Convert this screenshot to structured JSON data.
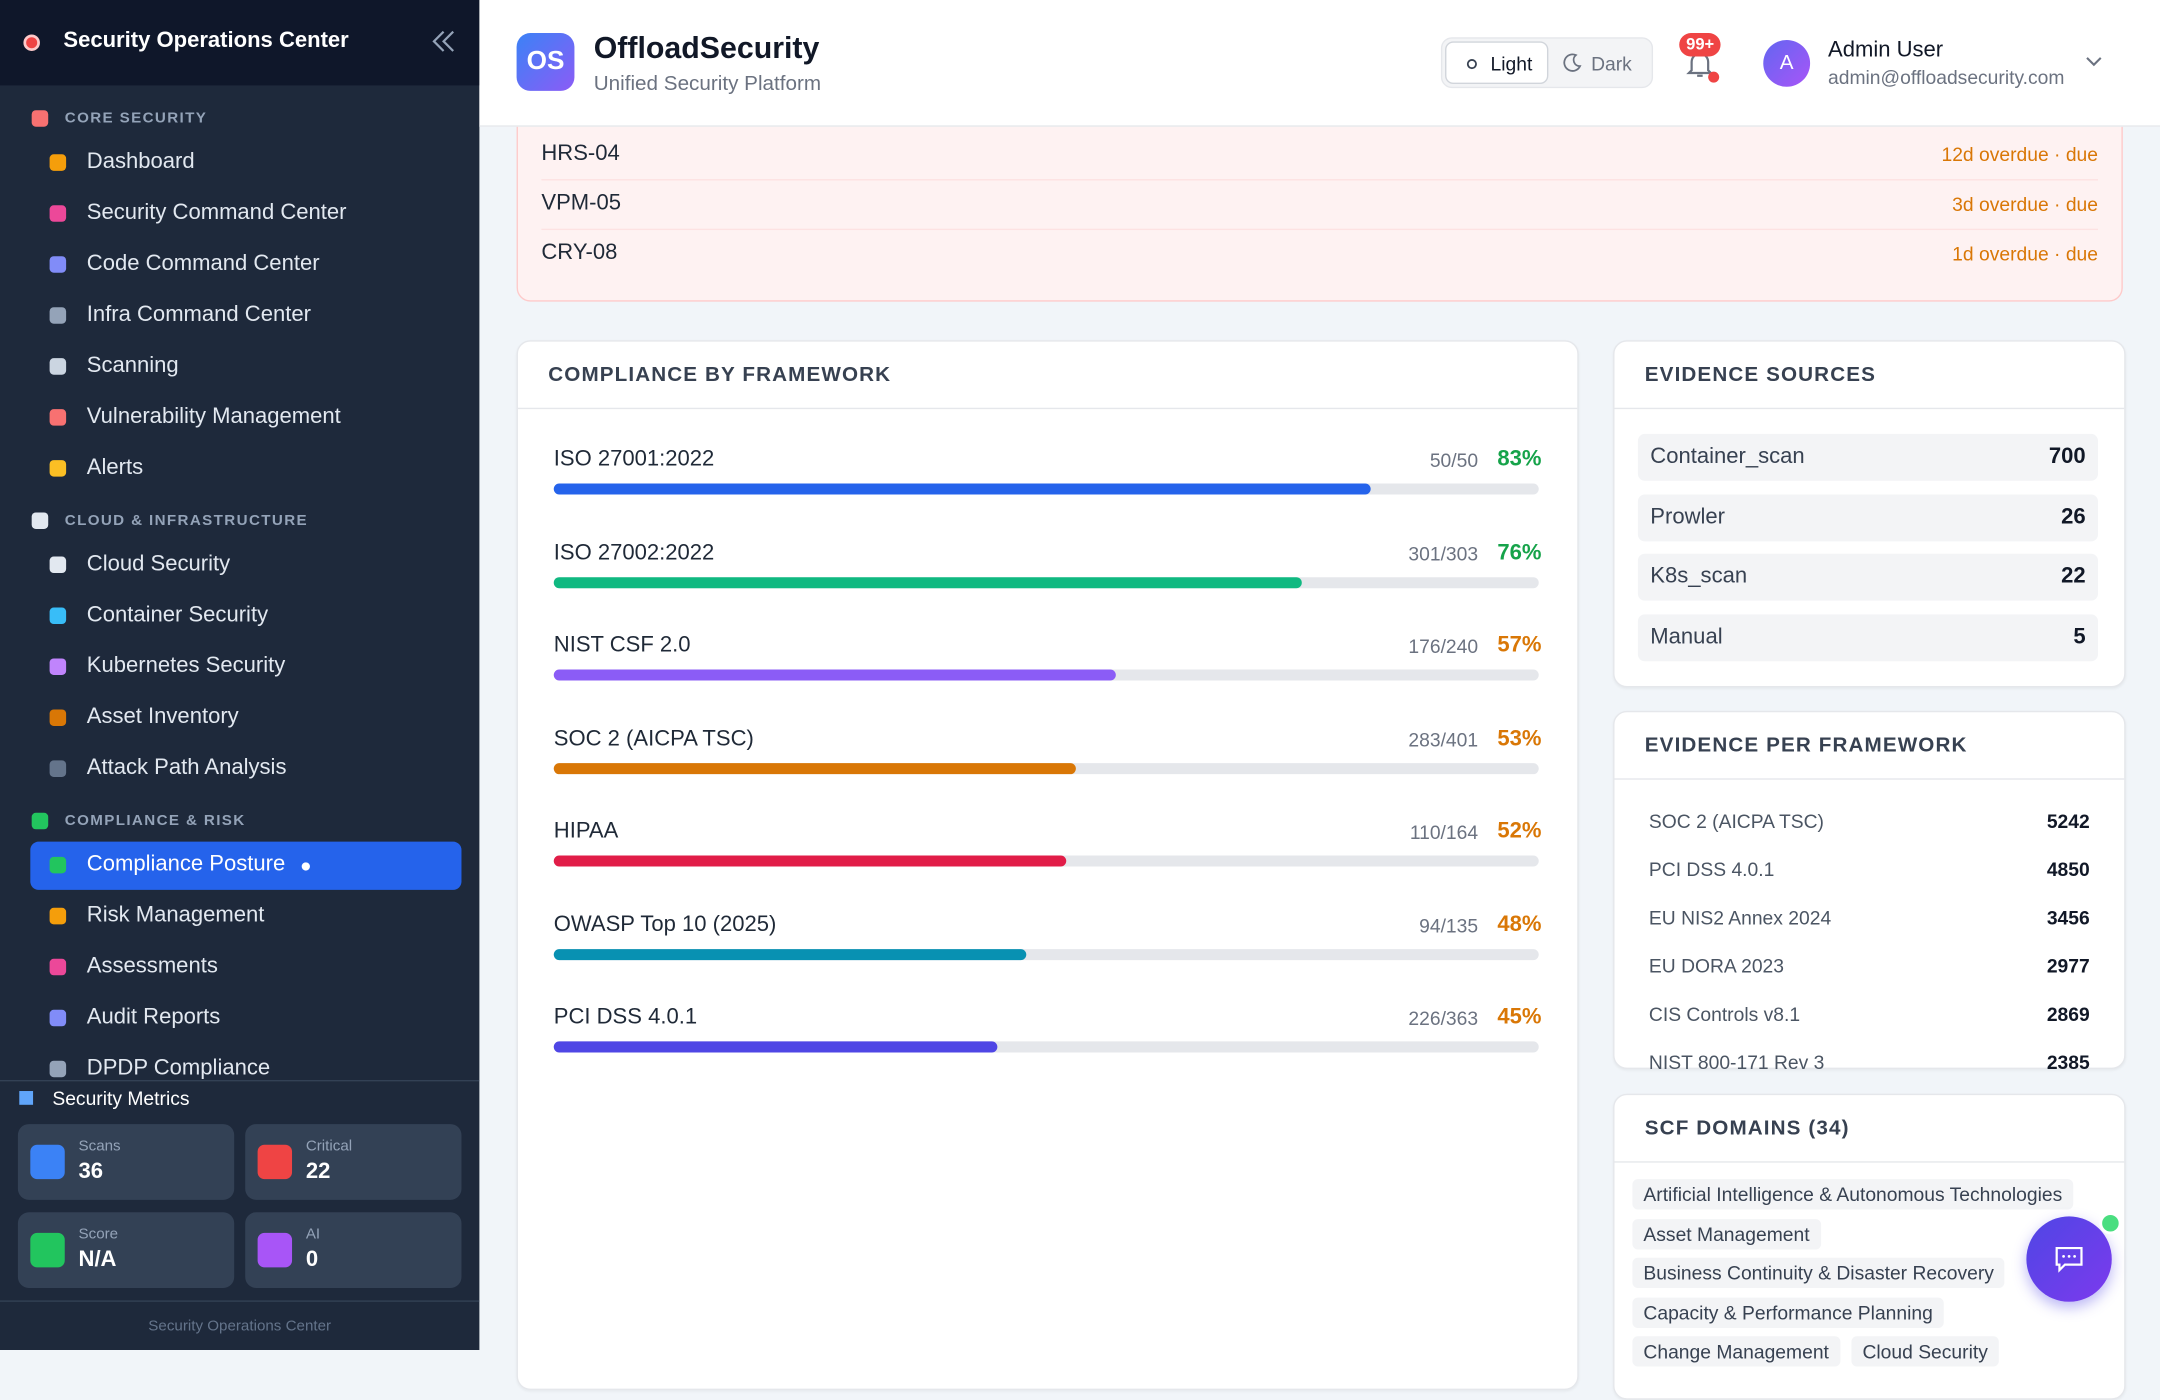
{
  "sidebar": {
    "title": "Security Operations Center",
    "sections": [
      {
        "title": "CORE SECURITY",
        "items": [
          "Dashboard",
          "Security Command Center",
          "Code Command Center",
          "Infra Command Center",
          "Scanning",
          "Vulnerability Management",
          "Alerts"
        ]
      },
      {
        "title": "CLOUD & INFRASTRUCTURE",
        "items": [
          "Cloud Security",
          "Container Security",
          "Kubernetes Security",
          "Asset Inventory",
          "Attack Path Analysis"
        ]
      },
      {
        "title": "COMPLIANCE & RISK",
        "items": [
          "Compliance Posture",
          "Risk Management",
          "Assessments",
          "Audit Reports",
          "DPDP Compliance"
        ]
      }
    ],
    "active": "Compliance Posture",
    "metrics_title": "Security Metrics",
    "metrics": [
      {
        "label": "Scans",
        "value": "36",
        "color": "#3b82f6"
      },
      {
        "label": "Critical",
        "value": "22",
        "color": "#ef4444"
      },
      {
        "label": "Score",
        "value": "N/A",
        "color": "#22c55e"
      },
      {
        "label": "AI",
        "value": "0",
        "color": "#a855f7"
      }
    ],
    "footer": "Security Operations Center"
  },
  "header": {
    "logo": "OS",
    "name": "OffloadSecurity",
    "subtitle": "Unified Security Platform",
    "theme_light": "Light",
    "theme_dark": "Dark",
    "badge": "99+",
    "avatar": "A",
    "user_name": "Admin User",
    "user_email": "admin@offloadsecurity.com"
  },
  "overdue": [
    {
      "id": "HRS-04",
      "status": "12d overdue · due"
    },
    {
      "id": "VPM-05",
      "status": "3d overdue · due"
    },
    {
      "id": "CRY-08",
      "status": "1d overdue · due"
    }
  ],
  "compliance": {
    "title": "COMPLIANCE BY FRAMEWORK",
    "frameworks": [
      {
        "name": "ISO 27001:2022",
        "count": "50/50",
        "percent": 83,
        "percent_label": "83%",
        "color": "#2563eb"
      },
      {
        "name": "ISO 27002:2022",
        "count": "301/303",
        "percent": 76,
        "percent_label": "76%",
        "color": "#10b981"
      },
      {
        "name": "NIST CSF 2.0",
        "count": "176/240",
        "percent": 57,
        "percent_label": "57%",
        "color": "#8b5cf6"
      },
      {
        "name": "SOC 2 (AICPA TSC)",
        "count": "283/401",
        "percent": 53,
        "percent_label": "53%",
        "color": "#d97706"
      },
      {
        "name": "HIPAA",
        "count": "110/164",
        "percent": 52,
        "percent_label": "52%",
        "color": "#e11d48"
      },
      {
        "name": "OWASP Top 10 (2025)",
        "count": "94/135",
        "percent": 48,
        "percent_label": "48%",
        "color": "#0891b2"
      },
      {
        "name": "PCI DSS 4.0.1",
        "count": "226/363",
        "percent": 45,
        "percent_label": "45%",
        "color": "#4f46e5"
      }
    ]
  },
  "evidence_sources": {
    "title": "EVIDENCE SOURCES",
    "rows": [
      {
        "name": "Container_scan",
        "value": 700
      },
      {
        "name": "Prowler",
        "value": 26
      },
      {
        "name": "K8s_scan",
        "value": 22
      },
      {
        "name": "Manual",
        "value": 5
      }
    ]
  },
  "evidence_per_framework": {
    "title": "EVIDENCE PER FRAMEWORK",
    "rows": [
      {
        "name": "SOC 2 (AICPA TSC)",
        "value": 5242
      },
      {
        "name": "PCI DSS 4.0.1",
        "value": 4850
      },
      {
        "name": "EU NIS2 Annex 2024",
        "value": 3456
      },
      {
        "name": "EU DORA 2023",
        "value": 2977
      },
      {
        "name": "CIS Controls v8.1",
        "value": 2869
      },
      {
        "name": "NIST 800-171 Rev 3",
        "value": 2385
      }
    ]
  },
  "scf_domains": {
    "title": "SCF DOMAINS (34)",
    "tags": [
      "Artificial Intelligence & Autonomous Technologies",
      "Asset Management",
      "Business Continuity & Disaster Recovery",
      "Capacity & Performance Planning",
      "Change Management",
      "Cloud Security"
    ]
  }
}
